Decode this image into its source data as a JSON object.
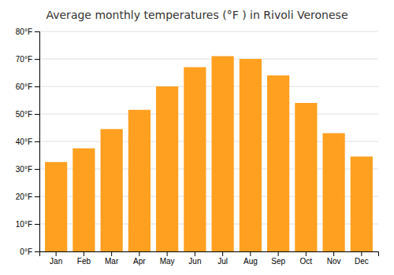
{
  "chart_data": {
    "type": "bar",
    "title": "Average monthly temperatures (°F ) in Rivoli Veronese",
    "categories": [
      "Jan",
      "Feb",
      "Mar",
      "Apr",
      "May",
      "Jun",
      "Jul",
      "Aug",
      "Sep",
      "Oct",
      "Nov",
      "Dec"
    ],
    "values": [
      32.5,
      37.5,
      44.5,
      51.5,
      60.0,
      67.0,
      71.0,
      70.0,
      64.0,
      54.0,
      43.0,
      34.5
    ],
    "color": "#FFA020",
    "ylim": [
      0,
      80
    ],
    "yticks": [
      {
        "value": 0,
        "label": "0°F"
      },
      {
        "value": 10,
        "label": "10°F"
      },
      {
        "value": 20,
        "label": "20°F"
      },
      {
        "value": 30,
        "label": "30°F"
      },
      {
        "value": 40,
        "label": "40°F"
      },
      {
        "value": 50,
        "label": "50°F"
      },
      {
        "value": 60,
        "label": "60°F"
      },
      {
        "value": 70,
        "label": "70°F"
      },
      {
        "value": 80,
        "label": "80°F"
      }
    ],
    "grid": true
  }
}
